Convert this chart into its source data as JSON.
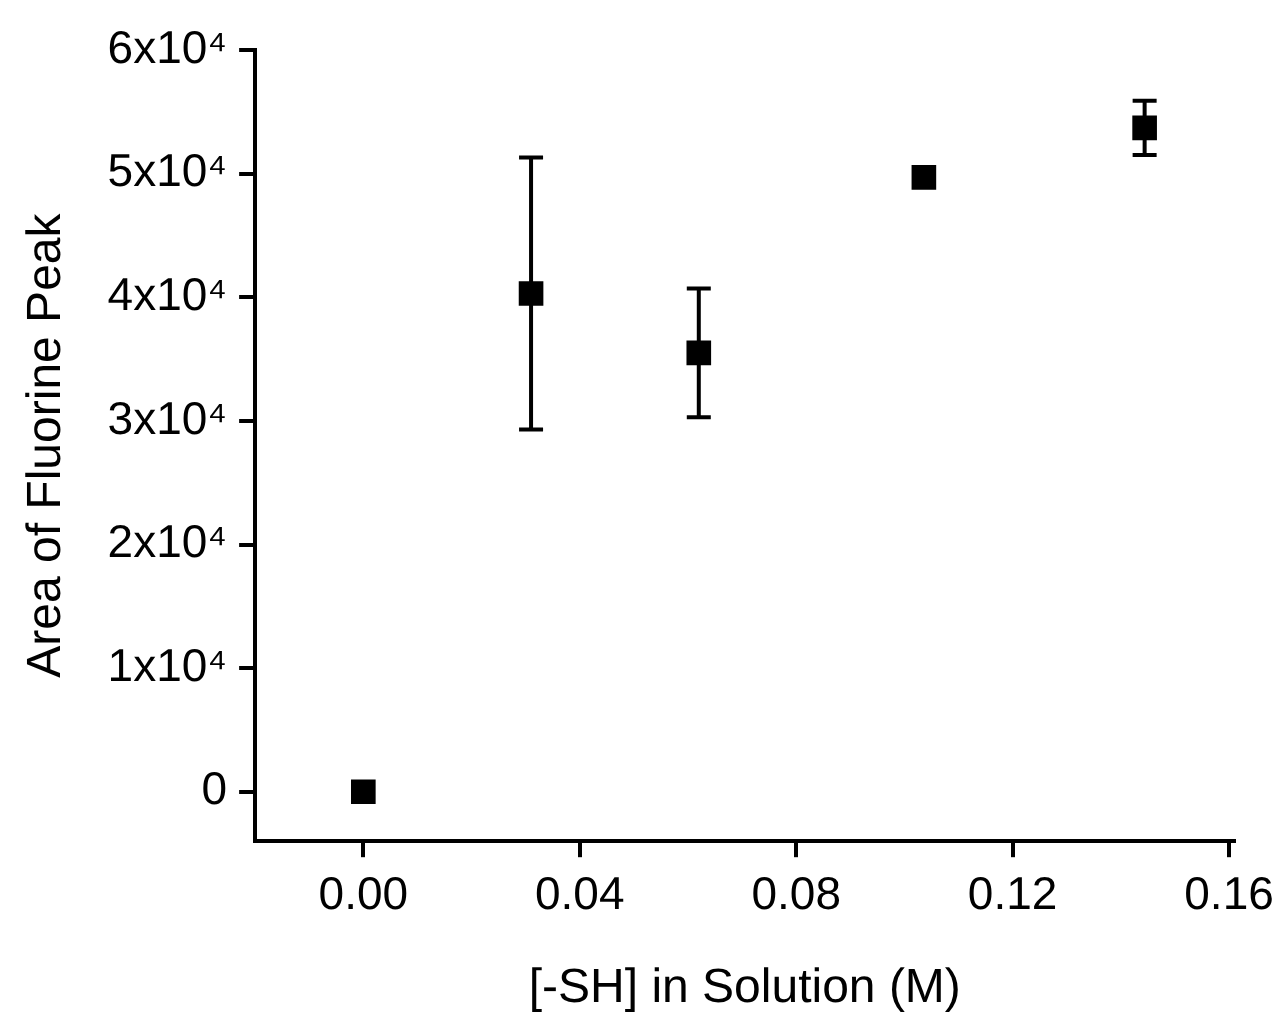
{
  "chart_data": {
    "type": "scatter",
    "xlabel": "[-SH] in Solution (M)",
    "ylabel": "Area of Fluorine Peak",
    "x": [
      0.0,
      0.031,
      0.062,
      0.1036,
      0.1444
    ],
    "series": [
      {
        "color": "#000000",
        "values": [
          0,
          40300,
          35500,
          49700,
          53700
        ],
        "errors": [
          null,
          11000,
          5200,
          null,
          2200
        ]
      }
    ],
    "xlim": [
      -0.02,
      0.161
    ],
    "xticks": [
      {
        "value": 0,
        "label": "0.00"
      },
      0.04,
      0.08,
      0.12,
      0.16
    ],
    "ylim": [
      -4000,
      60000
    ],
    "yticks": [
      {
        "value": 0,
        "label": "0"
      },
      {
        "value": 10000,
        "label": "1x10⁴"
      },
      {
        "value": 20000,
        "label": "2x10⁴"
      },
      {
        "value": 30000,
        "label": "3x10⁴"
      },
      {
        "value": 40000,
        "label": "4x10⁴"
      },
      {
        "value": 50000,
        "label": "5x10⁴"
      },
      {
        "value": 60000,
        "label": "6x10⁴"
      }
    ],
    "marker": "square",
    "grid": false,
    "legend": false
  }
}
